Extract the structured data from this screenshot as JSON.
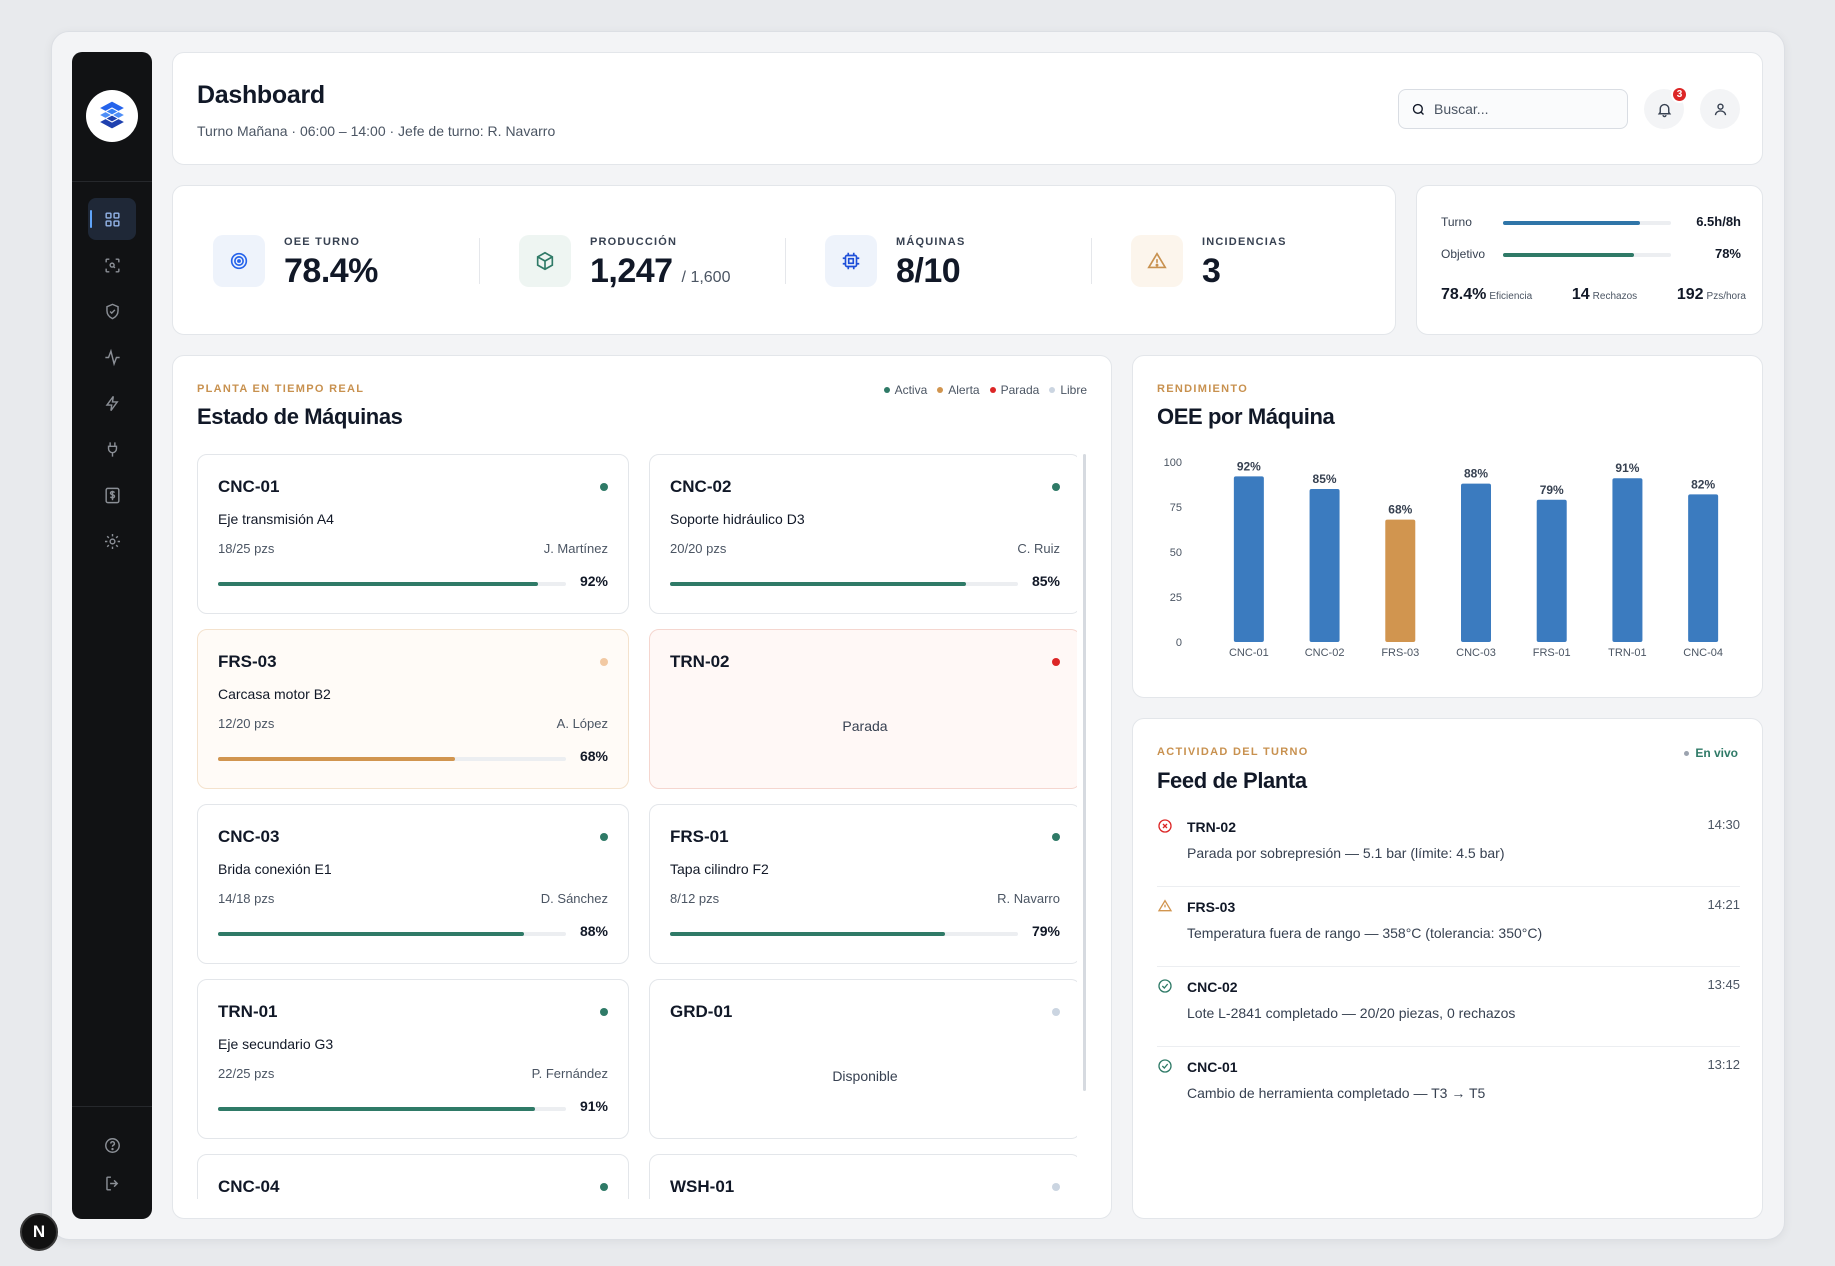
{
  "header": {
    "title": "Dashboard",
    "subtitle": "Turno Mañana · 06:00 – 14:00 · Jefe de turno: R. Navarro",
    "search_placeholder": "Buscar...",
    "notifications_count": "3"
  },
  "kpis": [
    {
      "label": "OEE TURNO",
      "value": "78.4%",
      "suffix": "",
      "icon": "target-icon",
      "accent": "#2563eb"
    },
    {
      "label": "PRODUCCIÓN",
      "value": "1,247",
      "suffix": "/ 1,600",
      "icon": "box-icon",
      "accent": "#2f7a67"
    },
    {
      "label": "MÁQUINAS",
      "value": "8/10",
      "suffix": "",
      "icon": "cpu-icon",
      "accent": "#1d4ed8"
    },
    {
      "label": "INCIDENCIAS",
      "value": "3",
      "suffix": "",
      "icon": "warning-icon",
      "accent": "#c8914f"
    }
  ],
  "turno": {
    "rows": [
      {
        "label": "Turno",
        "value": "6.5h/8h",
        "fraction": 0.8125,
        "color": "#2f75a8"
      },
      {
        "label": "Objetivo",
        "value": "78%",
        "fraction": 0.78,
        "color": "#2f7a67"
      }
    ],
    "stats": [
      {
        "value": "78.4%",
        "label": "Eficiencia"
      },
      {
        "value": "14",
        "label": "Rechazos"
      },
      {
        "value": "192",
        "label": "Pzs/hora"
      }
    ]
  },
  "estado": {
    "eyebrow": "PLANTA EN TIEMPO REAL",
    "title": "Estado de Máquinas",
    "legend": [
      {
        "label": "Activa",
        "color": "#2f7a67"
      },
      {
        "label": "Alerta",
        "color": "#d1954f"
      },
      {
        "label": "Parada",
        "color": "#dc2626"
      },
      {
        "label": "Libre",
        "color": "#cbd5e1"
      }
    ],
    "machines": [
      {
        "id": "CNC-01",
        "status": "active",
        "part": "Eje transmisión A4",
        "pieces": "18/25 pzs",
        "operator": "J. Martínez",
        "oee": "92%",
        "fraction": 0.92
      },
      {
        "id": "CNC-02",
        "status": "active",
        "part": "Soporte hidráulico D3",
        "pieces": "20/20 pzs",
        "operator": "C. Ruiz",
        "oee": "85%",
        "fraction": 0.85
      },
      {
        "id": "FRS-03",
        "status": "alert",
        "part": "Carcasa motor B2",
        "pieces": "12/20 pzs",
        "operator": "A. López",
        "oee": "68%",
        "fraction": 0.68
      },
      {
        "id": "TRN-02",
        "status": "stopped",
        "state_text": "Parada"
      },
      {
        "id": "CNC-03",
        "status": "active",
        "part": "Brida conexión E1",
        "pieces": "14/18 pzs",
        "operator": "D. Sánchez",
        "oee": "88%",
        "fraction": 0.88
      },
      {
        "id": "FRS-01",
        "status": "active",
        "part": "Tapa cilindro F2",
        "pieces": "8/12 pzs",
        "operator": "R. Navarro",
        "oee": "79%",
        "fraction": 0.79
      },
      {
        "id": "TRN-01",
        "status": "active",
        "part": "Eje secundario G3",
        "pieces": "22/25 pzs",
        "operator": "P. Fernández",
        "oee": "91%",
        "fraction": 0.91
      },
      {
        "id": "GRD-01",
        "status": "free",
        "state_text": "Disponible"
      },
      {
        "id": "CNC-04",
        "status": "active"
      },
      {
        "id": "WSH-01",
        "status": "free"
      }
    ]
  },
  "oee": {
    "eyebrow": "RENDIMIENTO",
    "title": "OEE por Máquina"
  },
  "chart_data": {
    "type": "bar",
    "categories": [
      "CNC-01",
      "CNC-02",
      "FRS-03",
      "CNC-03",
      "FRS-01",
      "TRN-01",
      "CNC-04"
    ],
    "values": [
      92,
      85,
      68,
      88,
      79,
      91,
      82
    ],
    "data_labels": [
      "92%",
      "85%",
      "68%",
      "88%",
      "79%",
      "91%",
      "82%"
    ],
    "yticks": [
      0,
      25,
      50,
      75,
      100
    ],
    "ylim": [
      0,
      100
    ],
    "bar_color": "#3b7bbf",
    "highlight_color": "#d1954f",
    "highlight_index": 2,
    "grid": false,
    "legend": "none"
  },
  "feed": {
    "eyebrow": "ACTIVIDAD DEL TURNO",
    "title": "Feed de Planta",
    "live_label": "En vivo",
    "items": [
      {
        "kind": "error",
        "id": "TRN-02",
        "time": "14:30",
        "message": "Parada por sobrepresión — 5.1 bar (límite: 4.5 bar)"
      },
      {
        "kind": "warning",
        "id": "FRS-03",
        "time": "14:21",
        "message": "Temperatura fuera de rango — 358°C (tolerancia: 350°C)"
      },
      {
        "kind": "success",
        "id": "CNC-02",
        "time": "13:45",
        "message": "Lote L-2841 completado — 20/20 piezas, 0 rechazos"
      },
      {
        "kind": "success",
        "id": "CNC-01",
        "time": "13:12",
        "message": "Cambio de herramienta completado — T3 → T5"
      }
    ]
  },
  "dev_badge": "N"
}
